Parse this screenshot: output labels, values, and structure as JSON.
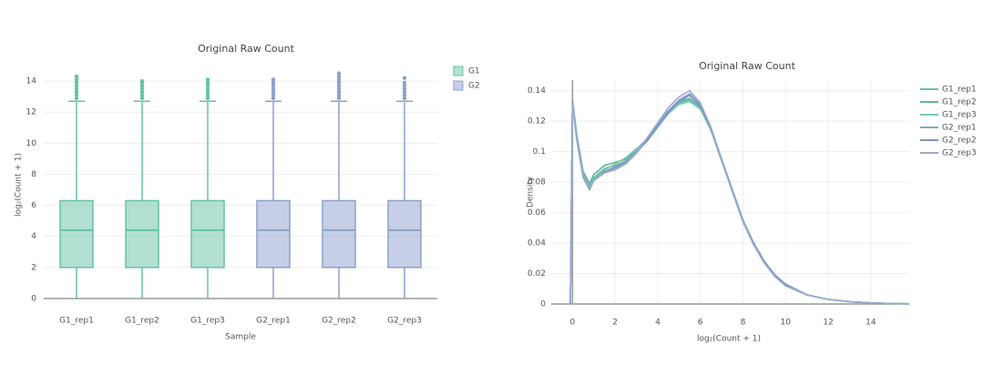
{
  "chart_data": [
    {
      "type": "box",
      "title": "Original Raw Count",
      "x_label": "Sample",
      "y_label": "log₂(Count + 1)",
      "categories": [
        "G1_rep1",
        "G1_rep2",
        "G1_rep3",
        "G2_rep1",
        "G2_rep2",
        "G2_rep3"
      ],
      "series": [
        {
          "name": "G1",
          "color": "#66c2a5",
          "values": [
            {
              "min": 0,
              "q1": 2,
              "median": 4.4,
              "q3": 6.3,
              "max": 12.7,
              "outliers": [
                12.9,
                13.1,
                13.3,
                13.5,
                13.7,
                13.9,
                14.1,
                14.3
              ]
            },
            {
              "min": 0,
              "q1": 2,
              "median": 4.4,
              "q3": 6.3,
              "max": 12.7,
              "outliers": [
                12.9,
                13.1,
                13.3,
                13.5,
                13.7,
                13.9,
                14
              ]
            },
            {
              "min": 0,
              "q1": 2,
              "median": 4.4,
              "q3": 6.3,
              "max": 12.7,
              "outliers": [
                12.9,
                13.1,
                13.3,
                13.5,
                13.7,
                13.9,
                14.1
              ]
            },
            null,
            null,
            null
          ]
        },
        {
          "name": "G2",
          "color": "#8da0cb",
          "values": [
            null,
            null,
            null,
            {
              "min": 0,
              "q1": 2,
              "median": 4.4,
              "q3": 6.3,
              "max": 12.7,
              "outliers": [
                12.9,
                13.1,
                13.3,
                13.5,
                13.7,
                13.9,
                14.1
              ]
            },
            {
              "min": 0,
              "q1": 2,
              "median": 4.4,
              "q3": 6.3,
              "max": 12.7,
              "outliers": [
                12.9,
                13.1,
                13.3,
                13.5,
                13.7,
                13.9,
                14.1,
                14.3,
                14.5
              ]
            },
            {
              "min": 0,
              "q1": 2,
              "median": 4.4,
              "q3": 6.3,
              "max": 12.7,
              "outliers": [
                12.9,
                13.1,
                13.3,
                13.5,
                13.7,
                13.9,
                14.2
              ]
            }
          ]
        }
      ],
      "ylim": [
        0,
        15
      ],
      "yticks": [
        0,
        2,
        4,
        6,
        8,
        10,
        12,
        14
      ],
      "grid": true,
      "legend": "top-right"
    },
    {
      "type": "line",
      "title": "Original Raw Count",
      "x_label": "log₂(Count + 1)",
      "y_label": "Density",
      "x": [
        -0.1,
        0,
        0.2,
        0.5,
        0.8,
        1,
        1.5,
        2,
        2.5,
        3,
        3.5,
        4,
        4.5,
        5,
        5.5,
        6,
        6.5,
        7,
        7.5,
        8,
        8.5,
        9,
        9.5,
        10,
        11,
        12,
        13,
        14,
        15,
        15.8
      ],
      "series": [
        {
          "name": "G1_rep1",
          "color": "#66c2a5",
          "values": [
            0,
            0.132,
            0.11,
            0.086,
            0.078,
            0.083,
            0.089,
            0.091,
            0.094,
            0.1,
            0.107,
            0.116,
            0.125,
            0.132,
            0.134,
            0.129,
            0.115,
            0.095,
            0.075,
            0.055,
            0.04,
            0.028,
            0.019,
            0.013,
            0.006,
            0.003,
            0.0015,
            0.0007,
            0.0003,
            0.0001
          ]
        },
        {
          "name": "G1_rep2",
          "color": "#5cb896",
          "values": [
            0,
            0.134,
            0.111,
            0.087,
            0.079,
            0.085,
            0.091,
            0.093,
            0.095,
            0.101,
            0.108,
            0.117,
            0.126,
            0.133,
            0.135,
            0.129,
            0.114,
            0.094,
            0.074,
            0.054,
            0.039,
            0.027,
            0.018,
            0.012,
            0.006,
            0.003,
            0.0015,
            0.0007,
            0.0003,
            0.0001
          ]
        },
        {
          "name": "G1_rep3",
          "color": "#78c9ad",
          "values": [
            0,
            0.131,
            0.109,
            0.085,
            0.077,
            0.082,
            0.088,
            0.092,
            0.096,
            0.102,
            0.108,
            0.116,
            0.125,
            0.131,
            0.133,
            0.128,
            0.114,
            0.095,
            0.075,
            0.055,
            0.04,
            0.028,
            0.019,
            0.013,
            0.006,
            0.003,
            0.0015,
            0.0007,
            0.0003,
            0.0001
          ]
        },
        {
          "name": "G2_rep1",
          "color": "#8da0cb",
          "values": [
            0,
            0.133,
            0.108,
            0.083,
            0.075,
            0.081,
            0.087,
            0.089,
            0.092,
            0.099,
            0.108,
            0.118,
            0.127,
            0.134,
            0.138,
            0.131,
            0.115,
            0.094,
            0.074,
            0.054,
            0.039,
            0.027,
            0.018,
            0.012,
            0.006,
            0.003,
            0.0015,
            0.0007,
            0.0003,
            0.0001
          ]
        },
        {
          "name": "G2_rep2",
          "color": "#8191c4",
          "values": [
            0,
            0.133,
            0.109,
            0.084,
            0.076,
            0.081,
            0.087,
            0.09,
            0.093,
            0.1,
            0.107,
            0.117,
            0.126,
            0.133,
            0.137,
            0.13,
            0.115,
            0.095,
            0.075,
            0.055,
            0.04,
            0.028,
            0.019,
            0.013,
            0.006,
            0.003,
            0.0015,
            0.0007,
            0.0003,
            0.0001
          ]
        },
        {
          "name": "G2_rep3",
          "color": "#9aaad3",
          "values": [
            0,
            0.132,
            0.108,
            0.084,
            0.076,
            0.081,
            0.086,
            0.088,
            0.092,
            0.1,
            0.109,
            0.119,
            0.129,
            0.136,
            0.14,
            0.132,
            0.116,
            0.095,
            0.074,
            0.054,
            0.039,
            0.027,
            0.018,
            0.012,
            0.006,
            0.003,
            0.0015,
            0.0007,
            0.0003,
            0.0001
          ]
        }
      ],
      "xlim": [
        -1,
        15.8
      ],
      "xticks": [
        0,
        2,
        4,
        6,
        8,
        10,
        12,
        14
      ],
      "ylim": [
        0,
        0.147
      ],
      "yticks": [
        0,
        0.02,
        0.04,
        0.06,
        0.08,
        0.1,
        0.12,
        0.14
      ],
      "grid": true,
      "legend": "top-right"
    }
  ]
}
